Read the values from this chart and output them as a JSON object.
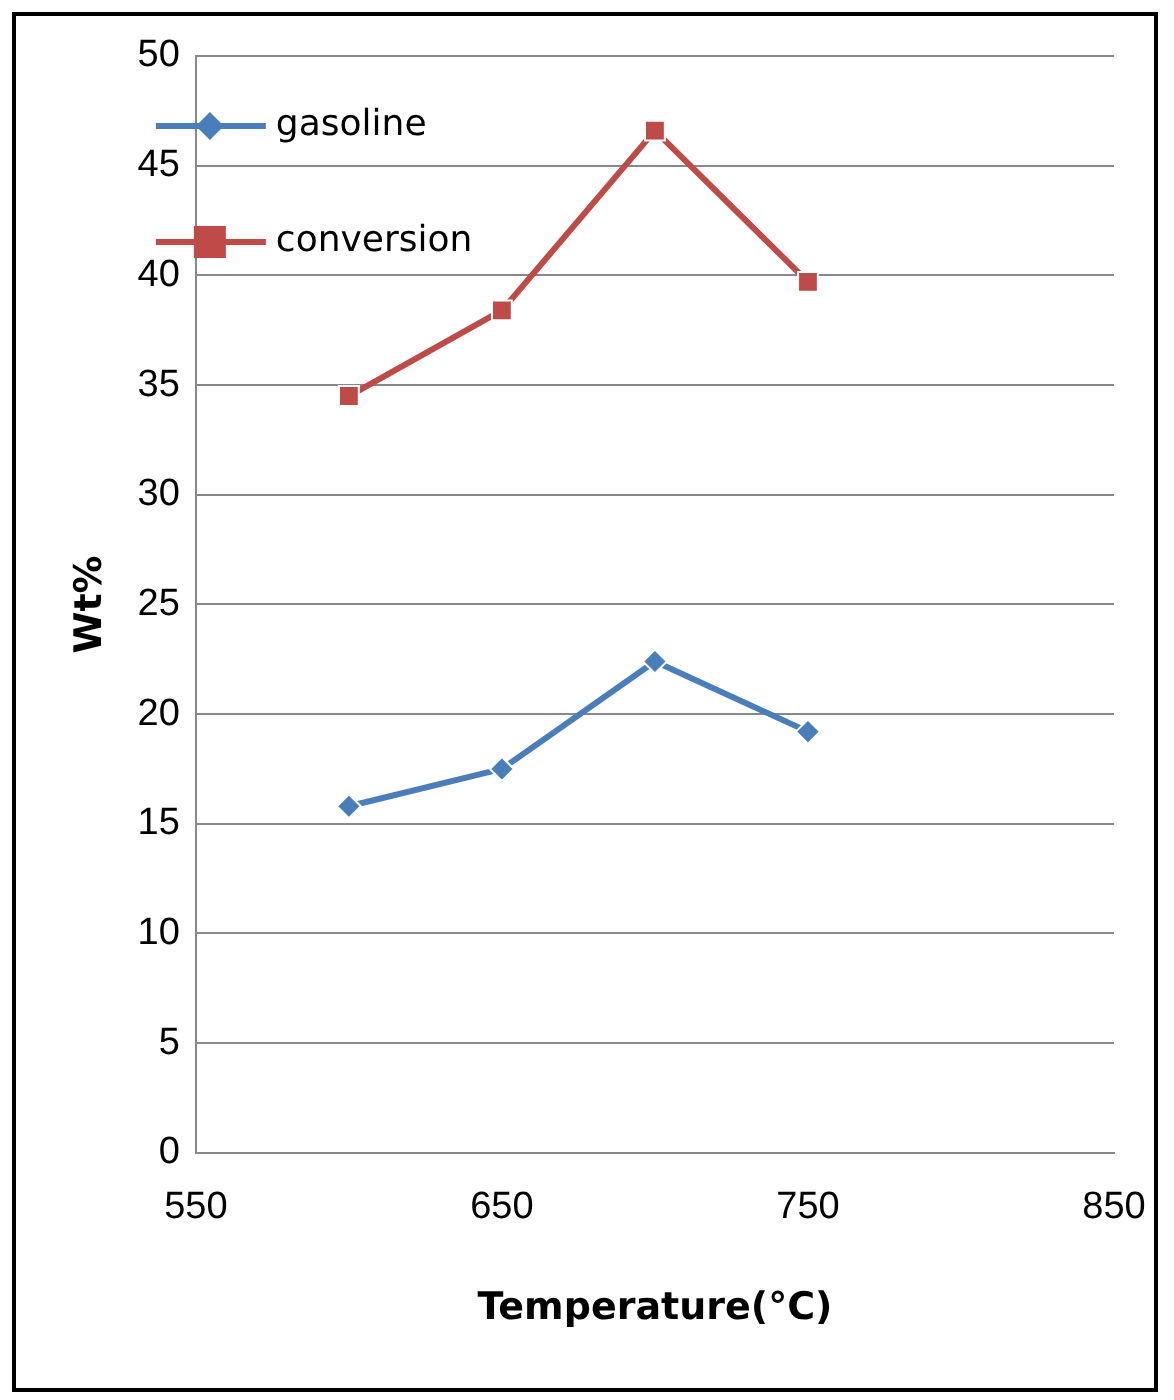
{
  "chart_data": {
    "type": "line",
    "xlabel": "Temperature(°C)",
    "ylabel": "Wt%",
    "x": [
      600,
      650,
      700,
      750
    ],
    "series": [
      {
        "name": "gasoline",
        "color": "#4a7ebb",
        "marker": "diamond",
        "values": [
          15.8,
          17.5,
          22.4,
          19.2
        ]
      },
      {
        "name": "conversion",
        "color": "#be4b48",
        "marker": "square",
        "values": [
          34.5,
          38.4,
          46.6,
          39.7
        ]
      }
    ],
    "xlim": [
      550,
      850
    ],
    "xticks": [
      550,
      650,
      750,
      850
    ],
    "ylim": [
      0,
      50
    ],
    "yticks": [
      0,
      5,
      10,
      15,
      20,
      25,
      30,
      35,
      40,
      45,
      50
    ],
    "grid": "y",
    "legend": "top left",
    "line_style": "solid"
  }
}
